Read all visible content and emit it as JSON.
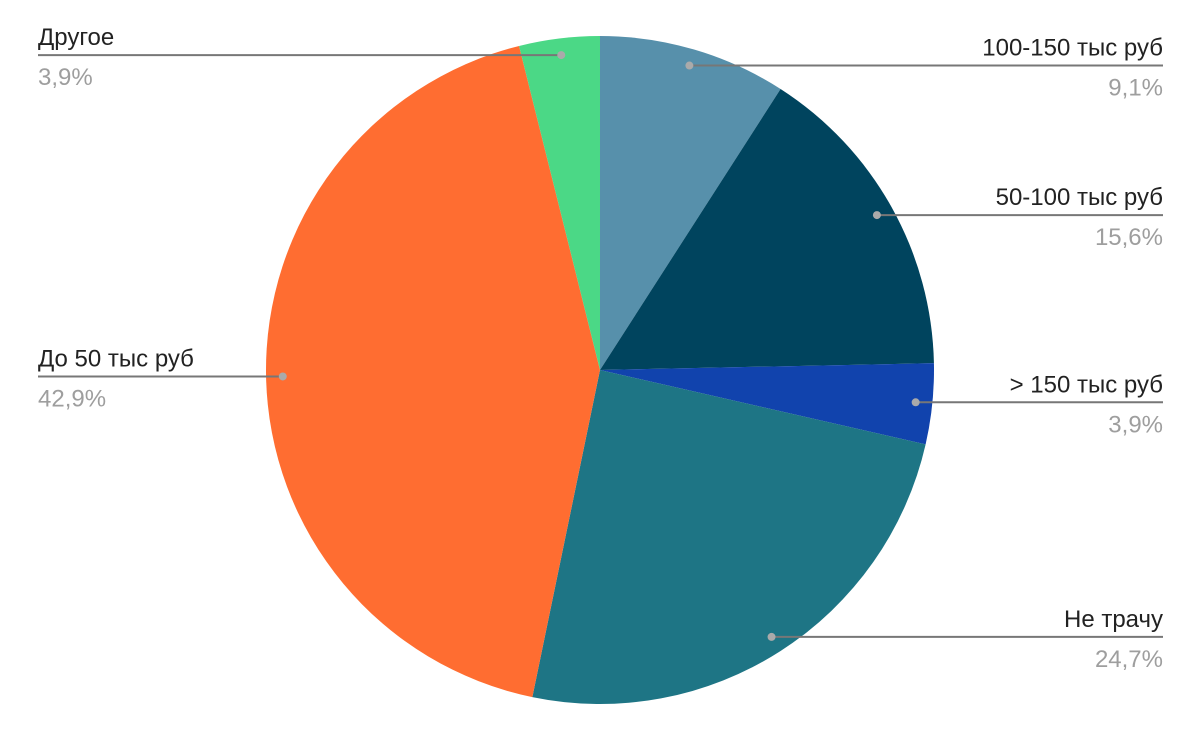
{
  "chart_data": {
    "type": "pie",
    "categories": [
      "100-150 тыс руб",
      "50-100 тыс руб",
      "> 150 тыс руб",
      "Не трачу",
      "До 50 тыс руб",
      "Другое"
    ],
    "values": [
      9.1,
      15.6,
      3.9,
      24.7,
      42.9,
      3.9
    ],
    "value_labels": [
      "9,1%",
      "15,6%",
      "3,9%",
      "24,7%",
      "42,9%",
      "3,9%"
    ],
    "colors": [
      "#5790ab",
      "#00445e",
      "#1143ad",
      "#1e7585",
      "#ff6d31",
      "#4bd886"
    ]
  }
}
